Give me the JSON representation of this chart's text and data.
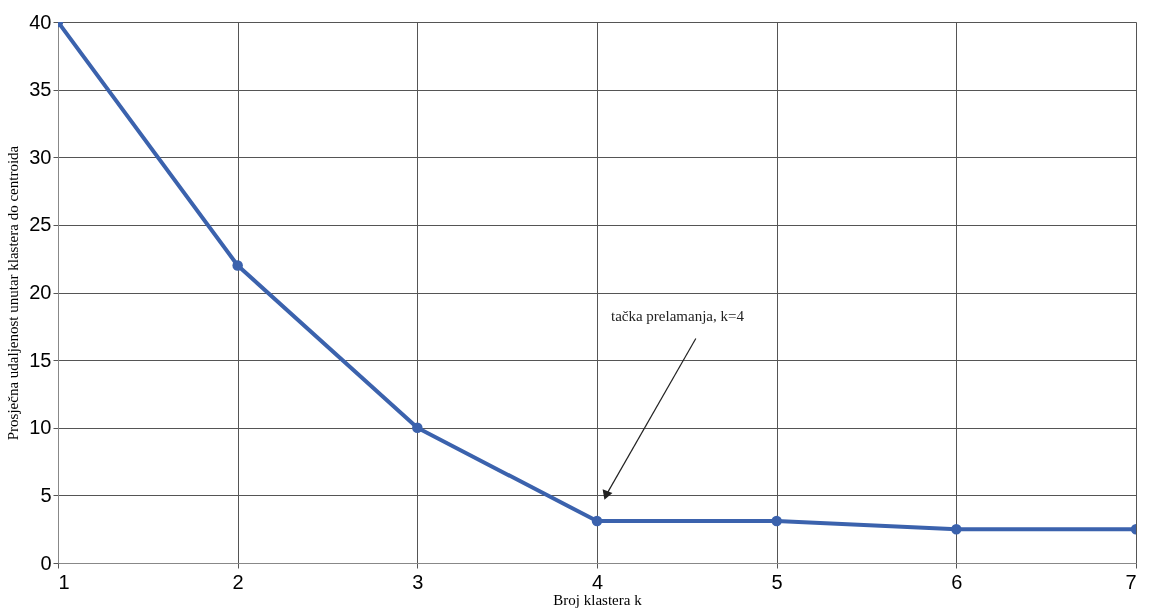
{
  "chart_data": {
    "type": "line",
    "xlabel": "Broj klastera k",
    "ylabel": "Prosječna udaljenost unutar klastera do centroida",
    "x": [
      1,
      2,
      3,
      4,
      5,
      6,
      7
    ],
    "series": [
      {
        "color": "#3b62ad",
        "values": [
          40,
          22,
          10,
          3.1,
          3.1,
          2.5,
          2.5
        ]
      }
    ],
    "xlim": [
      1,
      7
    ],
    "xticks": [
      1,
      2,
      3,
      4,
      5,
      6,
      7
    ],
    "ylim": [
      0,
      40
    ],
    "yticks": [
      0,
      5,
      10,
      15,
      20,
      25,
      30,
      35,
      40
    ],
    "grid": true,
    "marker": "circle",
    "line_style": "solid",
    "annotations": [
      {
        "text": "tačka prelamanja, k=4",
        "x": 4.05,
        "y": 5
      }
    ]
  }
}
